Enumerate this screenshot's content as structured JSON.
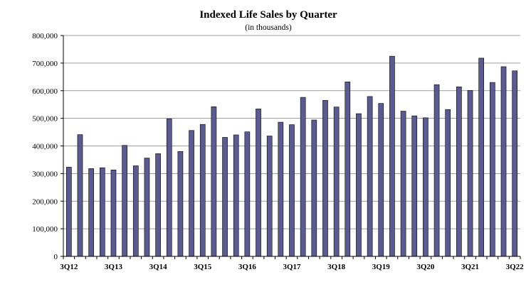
{
  "chart_data": {
    "type": "bar",
    "title": "Indexed Life Sales by Quarter",
    "subtitle": "(in thousands)",
    "xlabel": "",
    "ylabel": "",
    "ylim": [
      0,
      800000
    ],
    "yticks": [
      0,
      100000,
      200000,
      300000,
      400000,
      500000,
      600000,
      700000,
      800000
    ],
    "ytick_labels": [
      "0",
      "100,000",
      "200,000",
      "300,000",
      "400,000",
      "500,000",
      "600,000",
      "700,000",
      "800,000"
    ],
    "grid": true,
    "bar_color": "#5b5b8f",
    "categories": [
      "3Q12",
      "4Q12",
      "1Q13",
      "2Q13",
      "3Q13",
      "4Q13",
      "1Q14",
      "2Q14",
      "3Q14",
      "4Q14",
      "1Q15",
      "2Q15",
      "3Q15",
      "4Q15",
      "1Q16",
      "2Q16",
      "3Q16",
      "4Q16",
      "1Q17",
      "2Q17",
      "3Q17",
      "4Q17",
      "1Q18",
      "2Q18",
      "3Q18",
      "4Q18",
      "1Q19",
      "2Q19",
      "3Q19",
      "4Q19",
      "1Q20",
      "2Q20",
      "3Q20",
      "4Q20",
      "1Q21",
      "2Q21",
      "3Q21",
      "4Q21",
      "1Q22",
      "2Q22",
      "3Q22"
    ],
    "x_tick_labels": [
      "3Q12",
      "3Q13",
      "3Q14",
      "3Q15",
      "3Q16",
      "3Q17",
      "3Q18",
      "3Q19",
      "3Q20",
      "3Q21",
      "3Q22"
    ],
    "values": [
      323000,
      441000,
      318000,
      321000,
      313000,
      402000,
      328000,
      356000,
      372000,
      498000,
      380000,
      456000,
      478000,
      542000,
      431000,
      440000,
      451000,
      534000,
      436000,
      486000,
      477000,
      576000,
      494000,
      565000,
      541000,
      632000,
      517000,
      579000,
      554000,
      725000,
      526000,
      509000,
      502000,
      622000,
      532000,
      614000,
      601000,
      718000,
      630000,
      687000,
      672000
    ]
  }
}
